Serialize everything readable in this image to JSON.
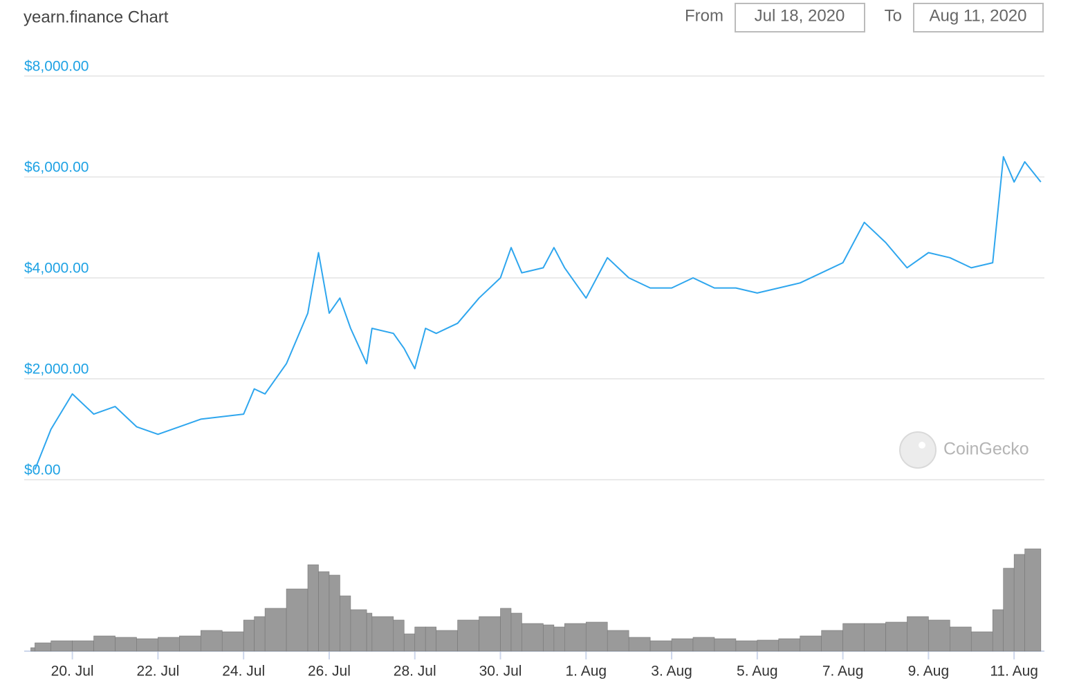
{
  "chart_data": {
    "type": "line",
    "title": "yearn.finance Chart",
    "from_label": "From",
    "from_date": "Jul 18, 2020",
    "to_label": "To",
    "to_date": "Aug 11, 2020",
    "watermark": "CoinGecko",
    "x": [
      "2020-07-19T03:00",
      "2020-07-19T12:00",
      "2020-07-20T00:00",
      "2020-07-20T12:00",
      "2020-07-21T00:00",
      "2020-07-21T12:00",
      "2020-07-22T00:00",
      "2020-07-22T12:00",
      "2020-07-23T00:00",
      "2020-07-23T12:00",
      "2020-07-24T00:00",
      "2020-07-24T06:00",
      "2020-07-24T12:00",
      "2020-07-25T00:00",
      "2020-07-25T12:00",
      "2020-07-25T18:00",
      "2020-07-26T00:00",
      "2020-07-26T06:00",
      "2020-07-26T12:00",
      "2020-07-26T21:00",
      "2020-07-27T00:00",
      "2020-07-27T12:00",
      "2020-07-27T18:00",
      "2020-07-28T00:00",
      "2020-07-28T06:00",
      "2020-07-28T12:00",
      "2020-07-29T00:00",
      "2020-07-29T12:00",
      "2020-07-30T00:00",
      "2020-07-30T06:00",
      "2020-07-30T12:00",
      "2020-07-31T00:00",
      "2020-07-31T06:00",
      "2020-07-31T12:00",
      "2020-08-01T00:00",
      "2020-08-01T12:00",
      "2020-08-02T00:00",
      "2020-08-02T12:00",
      "2020-08-03T00:00",
      "2020-08-03T12:00",
      "2020-08-04T00:00",
      "2020-08-04T12:00",
      "2020-08-05T00:00",
      "2020-08-05T12:00",
      "2020-08-06T00:00",
      "2020-08-06T12:00",
      "2020-08-07T00:00",
      "2020-08-07T12:00",
      "2020-08-08T00:00",
      "2020-08-08T12:00",
      "2020-08-09T00:00",
      "2020-08-09T12:00",
      "2020-08-10T00:00",
      "2020-08-10T12:00",
      "2020-08-10T18:00",
      "2020-08-11T00:00",
      "2020-08-11T06:00",
      "2020-08-11T15:00"
    ],
    "series": [
      {
        "name": "Price",
        "color": "#2ea6ee",
        "values": [
          200,
          1000,
          1700,
          1300,
          1450,
          1050,
          900,
          1050,
          1200,
          1250,
          1300,
          1800,
          1700,
          2300,
          3300,
          4500,
          3300,
          3600,
          3000,
          2300,
          3000,
          2900,
          2600,
          2200,
          3000,
          2900,
          3100,
          3600,
          4000,
          4600,
          4100,
          4200,
          4600,
          4200,
          3600,
          4400,
          4000,
          3800,
          3800,
          4000,
          3800,
          3800,
          3700,
          3800,
          3900,
          4100,
          4300,
          5100,
          4700,
          4200,
          4500,
          4400,
          4200,
          4300,
          6400,
          5900,
          6300,
          5900
        ]
      },
      {
        "name": "Volume",
        "color": "#9a9a9a",
        "axis": "y2",
        "values": [
          5,
          12,
          15,
          15,
          22,
          20,
          18,
          20,
          22,
          30,
          28,
          45,
          50,
          62,
          90,
          125,
          115,
          110,
          80,
          60,
          55,
          50,
          45,
          25,
          35,
          35,
          30,
          45,
          50,
          62,
          55,
          40,
          38,
          35,
          40,
          42,
          30,
          20,
          15,
          18,
          20,
          18,
          15,
          16,
          18,
          22,
          30,
          40,
          40,
          42,
          50,
          45,
          35,
          28,
          60,
          120,
          140,
          148
        ]
      }
    ],
    "xlim": [
      "2020-07-18T21:00",
      "2020-08-11T17:00"
    ],
    "xticks": [
      {
        "value": "2020-07-20T00:00",
        "label": "20. Jul"
      },
      {
        "value": "2020-07-22T00:00",
        "label": "22. Jul"
      },
      {
        "value": "2020-07-24T00:00",
        "label": "24. Jul"
      },
      {
        "value": "2020-07-26T00:00",
        "label": "26. Jul"
      },
      {
        "value": "2020-07-28T00:00",
        "label": "28. Jul"
      },
      {
        "value": "2020-07-30T00:00",
        "label": "30. Jul"
      },
      {
        "value": "2020-08-01T00:00",
        "label": "1. Aug"
      },
      {
        "value": "2020-08-03T00:00",
        "label": "3. Aug"
      },
      {
        "value": "2020-08-05T00:00",
        "label": "5. Aug"
      },
      {
        "value": "2020-08-07T00:00",
        "label": "7. Aug"
      },
      {
        "value": "2020-08-09T00:00",
        "label": "9. Aug"
      },
      {
        "value": "2020-08-11T00:00",
        "label": "11. Aug"
      }
    ],
    "ylim": [
      0,
      8000
    ],
    "yticks": [
      {
        "value": 0,
        "label": "$0.00"
      },
      {
        "value": 2000,
        "label": "$2,000.00"
      },
      {
        "value": 4000,
        "label": "$4,000.00"
      },
      {
        "value": 6000,
        "label": "$6,000.00"
      },
      {
        "value": 8000,
        "label": "$8,000.00"
      }
    ],
    "y2lim": [
      0,
      150
    ],
    "grid": true
  }
}
